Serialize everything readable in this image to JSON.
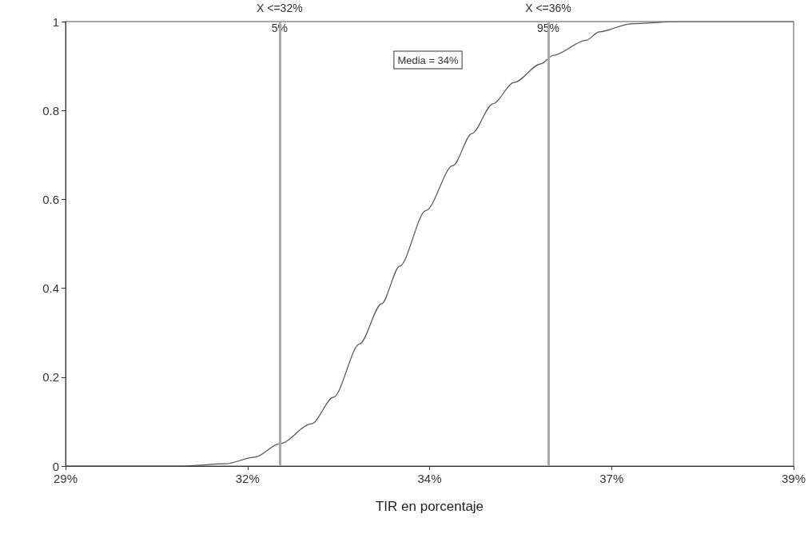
{
  "chart_data": {
    "type": "line",
    "xlabel": "TIR en porcentaje",
    "x": [
      29,
      30.6,
      31.2,
      31.6,
      31.94,
      32.38,
      32.68,
      33.04,
      33.34,
      33.59,
      33.95,
      34.32,
      34.58,
      34.87,
      35.16,
      35.53,
      35.7,
      36.15,
      36.33,
      36.77,
      37.43,
      39
    ],
    "series": [
      {
        "color": "#555555",
        "values": [
          0,
          0,
          0.005,
          0.02,
          0.05,
          0.095,
          0.155,
          0.275,
          0.365,
          0.45,
          0.575,
          0.676,
          0.748,
          0.815,
          0.863,
          0.905,
          0.924,
          0.958,
          0.977,
          0.995,
          1,
          1
        ]
      }
    ],
    "xlim": [
      29,
      39
    ],
    "xticks": [
      {
        "value": 29,
        "label": "29%"
      },
      {
        "value": 31.5,
        "label": "32%"
      },
      {
        "value": 34,
        "label": "34%"
      },
      {
        "value": 36.5,
        "label": "37%"
      },
      {
        "value": 39,
        "label": "39%"
      }
    ],
    "ylim": [
      0,
      1
    ],
    "yticks": [
      0,
      0.2,
      0.4,
      0.6,
      0.8,
      1
    ],
    "ref_lines": [
      {
        "axis": "x",
        "value": 31.94,
        "label": "X <=32%",
        "color": "#aaaaaa"
      },
      {
        "axis": "x",
        "value": 35.63,
        "label": "X <=36%",
        "color": "#aaaaaa"
      }
    ],
    "annotations": [
      {
        "text": "5%",
        "x": 31.94,
        "y": 1
      },
      {
        "text": "95%",
        "x": 35.63,
        "y": 1
      },
      "Media = 34%"
    ],
    "grid": false,
    "marker": "none",
    "line_style": "solid"
  }
}
